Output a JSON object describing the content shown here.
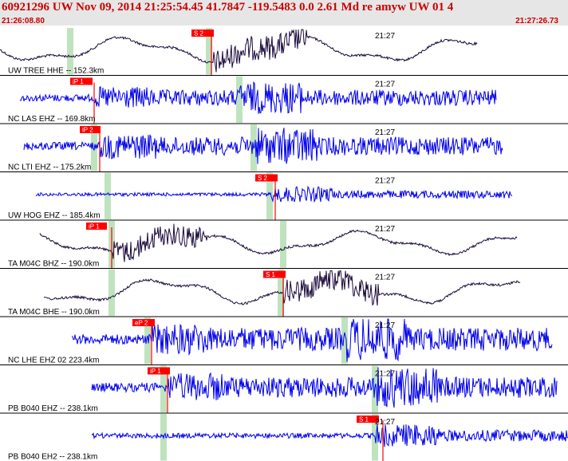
{
  "header": {
    "title": "60921296 UW Nov 09, 2014 21:25:54.45   41.7847 -119.5483  0.0 2.61 Md re amyw UW 01   4",
    "start_time": "21:26:08.80",
    "end_time": "21:27:26.73"
  },
  "colors": {
    "header_bg": "#e6e6e6",
    "header_text": "#cc0000",
    "trace_blue": "#0000ee",
    "trace_dark": "#1a0a3a",
    "pick_red": "#ff0000",
    "window_green": "#bfe3bf"
  },
  "traces": [
    {
      "label": "UW TREE HHE -- 152.3km",
      "time_label": "21:27",
      "pick": "S 2",
      "color": "dark"
    },
    {
      "label": "NC LAS EHZ -- 169.8km",
      "time_label": "21:27",
      "pick": "iP 1",
      "color": "blue"
    },
    {
      "label": "NC LTI EHZ -- 175.2km",
      "time_label": "21:27",
      "pick": "iP 2",
      "color": "blue"
    },
    {
      "label": "UW HOG EHZ -- 185.4km",
      "time_label": "21:27",
      "pick": "S 2",
      "color": "blue"
    },
    {
      "label": "TA M04C BHZ -- 190.0km",
      "time_label": "21:27",
      "pick": "iP 1",
      "color": "dark"
    },
    {
      "label": "TA M04C BHE -- 190.0km",
      "time_label": "21:27",
      "pick": "S 1",
      "color": "dark"
    },
    {
      "label": "NC LHE EHZ 02 223.4km",
      "time_label": "21:27",
      "pick": "eP 2",
      "color": "blue"
    },
    {
      "label": "PB B040 EHZ -- 238.1km",
      "time_label": "21:27",
      "pick": "iP 1",
      "color": "blue"
    },
    {
      "label": "PB B040 EH2 -- 238.1km",
      "time_label": "21:27",
      "pick": "S 1",
      "color": "blue"
    }
  ]
}
